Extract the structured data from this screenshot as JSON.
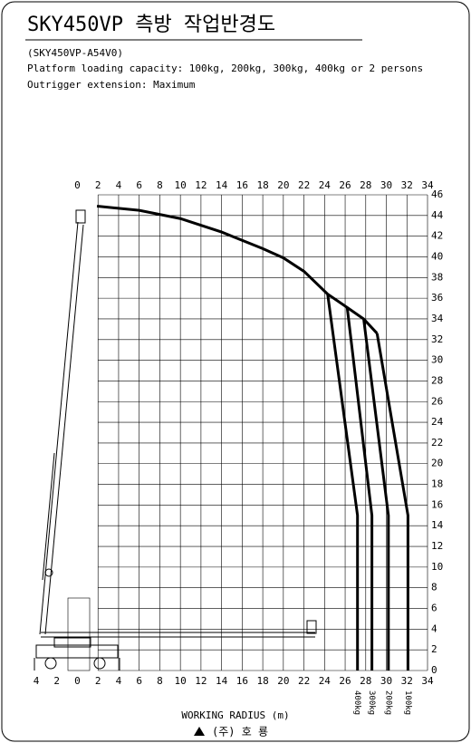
{
  "chart_data": {
    "type": "line",
    "title": "SKY450VP 측방 작업반경도",
    "subtitle": [
      "(SKY450VP-A54V0)",
      "Platform loading capacity: 100kg, 200kg, 300kg, 400kg or 2 persons",
      "Outrigger extension: Maximum"
    ],
    "xlabel": "WORKING RADIUS (m)",
    "footer": "(주) 호 룡",
    "xlim": [
      -4,
      34
    ],
    "ylim": [
      0,
      46
    ],
    "xticks": [
      {
        "value": -4,
        "label": "4"
      },
      {
        "value": -2,
        "label": "2"
      },
      0,
      2,
      4,
      6,
      8,
      10,
      12,
      14,
      16,
      18,
      20,
      22,
      24,
      26,
      28,
      30,
      32,
      34
    ],
    "x2ticks": [
      0,
      2,
      4,
      6,
      8,
      10,
      12,
      14,
      16,
      18,
      20,
      22,
      24,
      26,
      28,
      30,
      32,
      34
    ],
    "yticks": [
      0,
      2,
      4,
      6,
      8,
      10,
      12,
      14,
      16,
      18,
      20,
      22,
      24,
      26,
      28,
      30,
      32,
      34,
      36,
      38,
      40,
      42,
      44,
      46
    ],
    "grid": true,
    "series": [
      {
        "color": "#000000",
        "x": [
          1.9,
          6,
          10,
          14,
          18,
          20,
          22,
          24.3,
          26.2,
          27.8,
          29.1
        ],
        "values": [
          44.9,
          44.5,
          43.7,
          42.4,
          40.8,
          39.9,
          38.6,
          36.4,
          35.1,
          34,
          32.6
        ]
      },
      {
        "name": "400kg",
        "color": "#000000",
        "x": [
          24.3,
          27.2,
          27.2
        ],
        "values": [
          36.4,
          15,
          0
        ]
      },
      {
        "name": "300kg",
        "color": "#000000",
        "x": [
          26.2,
          28.6,
          28.6
        ],
        "values": [
          35.1,
          15,
          0
        ]
      },
      {
        "name": "200kg",
        "color": "#000000",
        "x": [
          27.8,
          30.2,
          30.2
        ],
        "values": [
          34,
          15,
          0
        ]
      },
      {
        "name": "100kg",
        "color": "#000000",
        "x": [
          29.1,
          32.1,
          32.1
        ],
        "values": [
          32.6,
          15,
          0
        ]
      }
    ]
  }
}
